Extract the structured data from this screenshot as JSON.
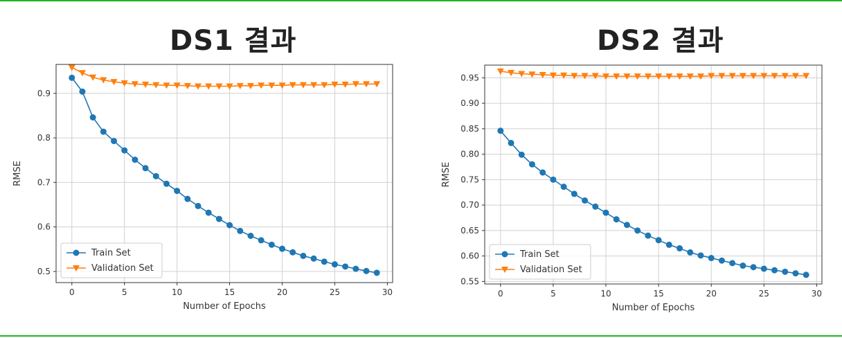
{
  "rules": {
    "color": "#1db51d"
  },
  "charts": [
    {
      "title": "DS1 결과"
    },
    {
      "title": "DS2 결과"
    }
  ],
  "chart_data": [
    {
      "type": "line",
      "title": "DS1 결과",
      "xlabel": "Number of Epochs",
      "ylabel": "RMSE",
      "xlim": [
        -1.5,
        30.5
      ],
      "ylim": [
        0.475,
        0.965
      ],
      "xticks": [
        0,
        5,
        10,
        15,
        20,
        25,
        30
      ],
      "yticks": [
        0.5,
        0.6,
        0.7,
        0.8,
        0.9
      ],
      "ytick_labels": [
        "0.5",
        "0.6",
        "0.7",
        "0.8",
        "0.9"
      ],
      "grid": true,
      "legend": "lower-left",
      "x": [
        0,
        1,
        2,
        3,
        4,
        5,
        6,
        7,
        8,
        9,
        10,
        11,
        12,
        13,
        14,
        15,
        16,
        17,
        18,
        19,
        20,
        21,
        22,
        23,
        24,
        25,
        26,
        27,
        28,
        29
      ],
      "series": [
        {
          "name": "Train Set",
          "color": "#1f77b4",
          "marker": "circle",
          "values": [
            0.935,
            0.904,
            0.846,
            0.814,
            0.793,
            0.772,
            0.751,
            0.732,
            0.714,
            0.697,
            0.681,
            0.663,
            0.647,
            0.632,
            0.618,
            0.604,
            0.591,
            0.58,
            0.57,
            0.56,
            0.551,
            0.543,
            0.535,
            0.529,
            0.522,
            0.516,
            0.511,
            0.506,
            0.501,
            0.497
          ]
        },
        {
          "name": "Validation Set",
          "color": "#ff7f0e",
          "marker": "triangle-down",
          "values": [
            0.958,
            0.946,
            0.936,
            0.93,
            0.926,
            0.923,
            0.921,
            0.92,
            0.919,
            0.918,
            0.918,
            0.917,
            0.916,
            0.916,
            0.916,
            0.916,
            0.917,
            0.917,
            0.918,
            0.918,
            0.918,
            0.919,
            0.919,
            0.919,
            0.919,
            0.92,
            0.92,
            0.921,
            0.921,
            0.921
          ]
        }
      ]
    },
    {
      "type": "line",
      "title": "DS2 결과",
      "xlabel": "Number of Epochs",
      "ylabel": "RMSE",
      "xlim": [
        -1.5,
        30.5
      ],
      "ylim": [
        0.545,
        0.975
      ],
      "xticks": [
        0,
        5,
        10,
        15,
        20,
        25,
        30
      ],
      "yticks": [
        0.55,
        0.6,
        0.65,
        0.7,
        0.75,
        0.8,
        0.85,
        0.9,
        0.95
      ],
      "ytick_labels": [
        "0.55",
        "0.60",
        "0.65",
        "0.70",
        "0.75",
        "0.80",
        "0.85",
        "0.90",
        "0.95"
      ],
      "grid": true,
      "legend": "lower-left",
      "x": [
        0,
        1,
        2,
        3,
        4,
        5,
        6,
        7,
        8,
        9,
        10,
        11,
        12,
        13,
        14,
        15,
        16,
        17,
        18,
        19,
        20,
        21,
        22,
        23,
        24,
        25,
        26,
        27,
        28,
        29
      ],
      "series": [
        {
          "name": "Train Set",
          "color": "#1f77b4",
          "marker": "circle",
          "values": [
            0.846,
            0.822,
            0.799,
            0.78,
            0.764,
            0.75,
            0.736,
            0.722,
            0.709,
            0.697,
            0.685,
            0.672,
            0.661,
            0.65,
            0.64,
            0.631,
            0.622,
            0.615,
            0.607,
            0.601,
            0.596,
            0.591,
            0.586,
            0.581,
            0.578,
            0.575,
            0.572,
            0.569,
            0.566,
            0.563
          ]
        },
        {
          "name": "Validation Set",
          "color": "#ff7f0e",
          "marker": "triangle-down",
          "values": [
            0.963,
            0.96,
            0.958,
            0.957,
            0.956,
            0.955,
            0.955,
            0.954,
            0.954,
            0.954,
            0.953,
            0.953,
            0.953,
            0.953,
            0.953,
            0.953,
            0.953,
            0.953,
            0.953,
            0.953,
            0.954,
            0.954,
            0.954,
            0.954,
            0.954,
            0.954,
            0.954,
            0.954,
            0.954,
            0.954
          ]
        }
      ]
    }
  ]
}
